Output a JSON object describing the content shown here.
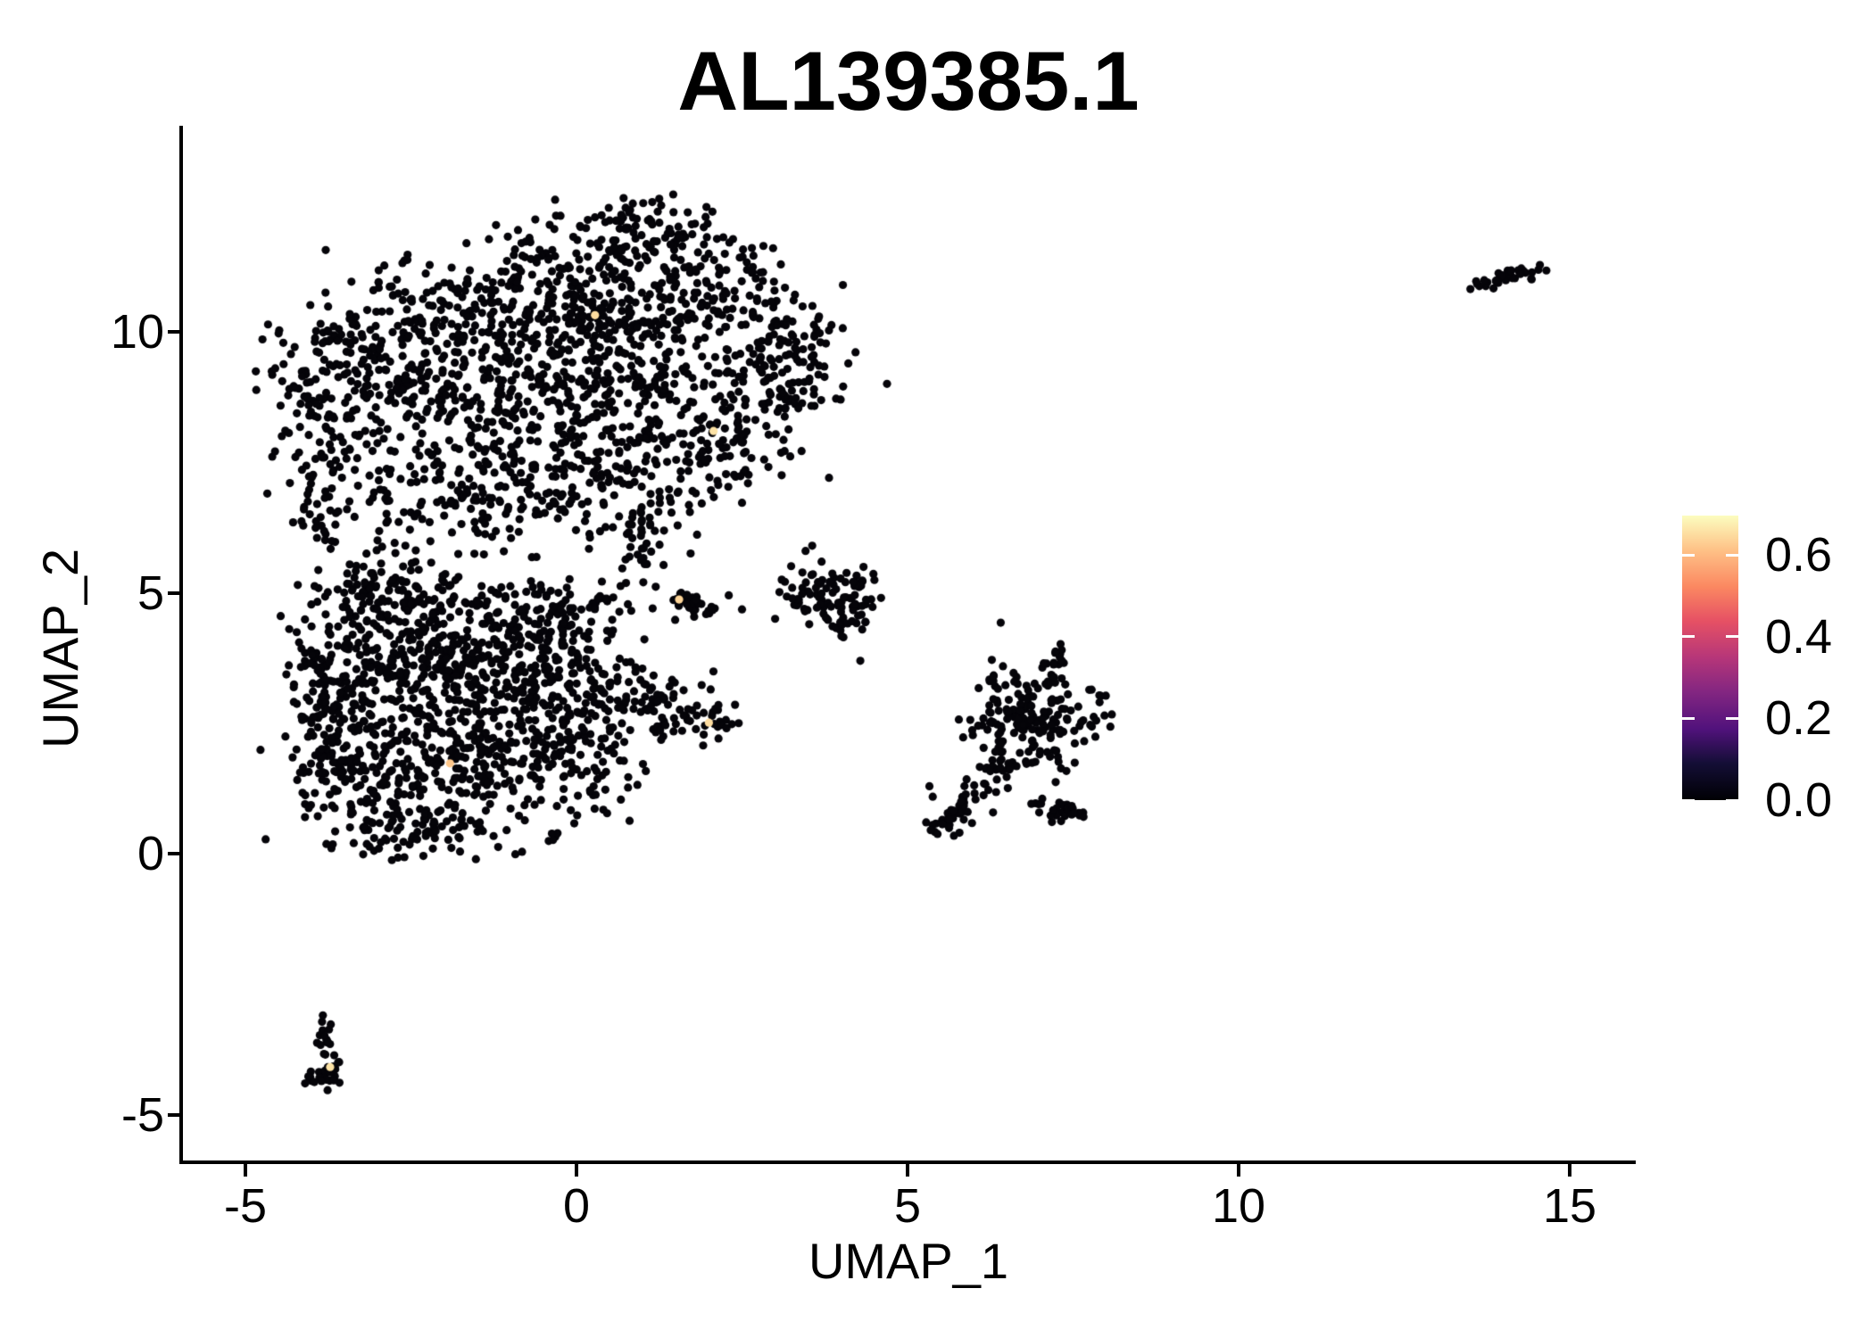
{
  "chart_data": {
    "type": "scatter",
    "title": "AL139385.1",
    "xlabel": "UMAP_1",
    "ylabel": "UMAP_2",
    "xlim": [
      -6,
      16
    ],
    "ylim": [
      -6,
      14
    ],
    "grid": false,
    "x_ticks": [
      -5,
      0,
      5,
      10,
      15
    ],
    "x_tick_labels": [
      "-5",
      "0",
      "5",
      "10",
      "15"
    ],
    "y_ticks": [
      -5,
      0,
      5,
      10
    ],
    "y_tick_labels": [
      "-5",
      "0",
      "5",
      "10"
    ],
    "legend": {
      "position": "right",
      "vmin": 0.0,
      "vmax": 0.697,
      "ticks": [
        0.6,
        0.4,
        0.2,
        0.0
      ],
      "tick_labels": [
        "0.6",
        "0.4",
        "0.2",
        "0.0"
      ],
      "palette": "magma",
      "gradient_stops": [
        [
          0.0,
          "#000004"
        ],
        [
          0.13,
          "#140e36"
        ],
        [
          0.25,
          "#51127c"
        ],
        [
          0.38,
          "#832681"
        ],
        [
          0.5,
          "#b63679"
        ],
        [
          0.63,
          "#e65164"
        ],
        [
          0.75,
          "#fb8861"
        ],
        [
          0.88,
          "#fec287"
        ],
        [
          1.0,
          "#fcfdbf"
        ]
      ]
    },
    "point_radius_px": 4.6,
    "zero_expression_color": "#050409",
    "seed": 1337,
    "clusters": [
      {
        "name": "upper-main-blob",
        "blobs": [
          [
            1.2,
            12.0,
            0.5,
            0.35,
            60
          ],
          [
            0.2,
            11.3,
            0.8,
            0.5,
            110
          ],
          [
            -1.5,
            10.5,
            0.8,
            0.55,
            110
          ],
          [
            -3.0,
            9.7,
            0.7,
            0.5,
            80
          ],
          [
            -4.0,
            9.0,
            0.45,
            0.5,
            55
          ],
          [
            2.2,
            10.9,
            0.6,
            0.5,
            80
          ],
          [
            3.1,
            9.9,
            0.5,
            0.55,
            70
          ],
          [
            -2.2,
            9.0,
            0.8,
            0.6,
            110
          ],
          [
            -0.6,
            9.9,
            0.9,
            0.7,
            150
          ],
          [
            1.0,
            10.0,
            0.8,
            0.6,
            120
          ],
          [
            -3.7,
            7.9,
            0.4,
            0.55,
            45
          ],
          [
            -1.5,
            7.9,
            0.9,
            0.65,
            120
          ],
          [
            0.3,
            8.6,
            0.9,
            0.7,
            130
          ],
          [
            2.0,
            8.8,
            0.7,
            0.6,
            90
          ],
          [
            3.2,
            8.7,
            0.45,
            0.5,
            50
          ],
          [
            -2.6,
            6.7,
            0.6,
            0.5,
            60
          ],
          [
            -0.9,
            6.8,
            0.7,
            0.5,
            70
          ],
          [
            0.8,
            7.3,
            0.7,
            0.55,
            80
          ],
          [
            2.2,
            7.5,
            0.5,
            0.45,
            50
          ],
          [
            -3.9,
            6.3,
            0.25,
            0.6,
            22
          ],
          [
            0.9,
            6.1,
            0.4,
            0.45,
            30
          ]
        ],
        "halos": [
          [
            -0.3,
            9.3,
            4.0,
            3.0,
            140
          ]
        ],
        "chains": [
          [
            -4.25,
            8.3,
            -3.9,
            5.6,
            16,
            0.12,
            0.12
          ],
          [
            0.85,
            6.4,
            1.05,
            5.15,
            12,
            0.1,
            0.1
          ]
        ],
        "singles": [
          [
            -4.55,
            9.3
          ],
          [
            1.25,
            12.55
          ],
          [
            -4.45,
            8.0
          ]
        ]
      },
      {
        "name": "lower-main-blob",
        "blobs": [
          [
            -3.1,
            4.6,
            0.55,
            0.5,
            90
          ],
          [
            -2.0,
            4.4,
            0.7,
            0.55,
            120
          ],
          [
            -0.9,
            4.3,
            0.6,
            0.5,
            90
          ],
          [
            0.0,
            4.6,
            0.45,
            0.4,
            50
          ],
          [
            -3.5,
            3.4,
            0.5,
            0.6,
            80
          ],
          [
            -2.4,
            3.2,
            0.7,
            0.6,
            130
          ],
          [
            -1.2,
            3.0,
            0.7,
            0.6,
            120
          ],
          [
            -0.1,
            3.2,
            0.55,
            0.5,
            80
          ],
          [
            0.9,
            2.9,
            0.5,
            0.45,
            60
          ],
          [
            1.7,
            2.6,
            0.4,
            0.3,
            35
          ],
          [
            -3.6,
            1.8,
            0.45,
            0.55,
            70
          ],
          [
            -2.5,
            1.5,
            0.6,
            0.55,
            100
          ],
          [
            -1.4,
            1.6,
            0.6,
            0.5,
            90
          ],
          [
            -0.4,
            2.0,
            0.5,
            0.45,
            60
          ],
          [
            -3.0,
            0.6,
            0.5,
            0.35,
            50
          ],
          [
            -1.9,
            0.5,
            0.5,
            0.35,
            45
          ],
          [
            -3.85,
            2.6,
            0.22,
            0.7,
            35
          ],
          [
            0.3,
            1.4,
            0.3,
            0.3,
            18
          ],
          [
            -3.0,
            5.2,
            0.4,
            0.3,
            30
          ]
        ],
        "halos": [
          [
            -1.6,
            2.7,
            3.0,
            2.7,
            130
          ]
        ],
        "chains": [
          [
            1.9,
            2.55,
            2.3,
            2.45,
            6,
            0.07,
            0.07
          ],
          [
            0.3,
            4.9,
            1.0,
            4.6,
            8,
            0.1,
            0.1
          ]
        ],
        "singles": [
          [
            2.45,
            2.5
          ],
          [
            -4.1,
            0.7
          ]
        ]
      },
      {
        "name": "mid-small-clump",
        "blobs": [
          [
            1.8,
            4.75,
            0.18,
            0.12,
            10
          ]
        ],
        "halos": [],
        "chains": [
          [
            1.45,
            4.95,
            2.05,
            4.62,
            22,
            0.09,
            0.09
          ]
        ],
        "singles": [
          [
            2.5,
            4.68
          ],
          [
            2.3,
            4.95
          ],
          [
            1.15,
            4.7
          ]
        ]
      },
      {
        "name": "right-cluster-A",
        "blobs": [
          [
            3.95,
            4.8,
            0.28,
            0.4,
            55
          ],
          [
            3.5,
            5.0,
            0.22,
            0.3,
            25
          ],
          [
            4.3,
            4.6,
            0.18,
            0.25,
            15
          ],
          [
            4.25,
            5.35,
            0.15,
            0.2,
            10
          ]
        ],
        "halos": [],
        "chains": [],
        "singles": [
          [
            3.0,
            4.5
          ],
          [
            3.1,
            5.25
          ],
          [
            3.46,
            5.8
          ],
          [
            3.56,
            5.9
          ],
          [
            4.6,
            4.9
          ]
        ]
      },
      {
        "name": "right-cluster-B",
        "blobs": [
          [
            7.05,
            2.6,
            0.42,
            0.5,
            110
          ],
          [
            6.6,
            2.9,
            0.3,
            0.35,
            35
          ],
          [
            6.25,
            2.35,
            0.22,
            0.2,
            22
          ],
          [
            5.65,
            0.65,
            0.18,
            0.14,
            18
          ],
          [
            7.45,
            0.78,
            0.2,
            0.08,
            12
          ],
          [
            6.2,
            1.5,
            0.3,
            0.3,
            12
          ],
          [
            7.0,
            1.9,
            0.25,
            0.2,
            10
          ]
        ],
        "halos": [],
        "chains": [
          [
            7.15,
            3.2,
            7.3,
            3.95,
            16,
            0.08,
            0.08
          ],
          [
            6.55,
            1.85,
            5.5,
            0.5,
            40,
            0.1,
            0.1
          ],
          [
            6.9,
            1.0,
            7.7,
            0.72,
            22,
            0.07,
            0.07
          ]
        ],
        "singles": [
          [
            7.9,
            2.9
          ],
          [
            7.85,
            2.55
          ],
          [
            6.3,
            3.4
          ],
          [
            5.35,
            0.45
          ]
        ]
      },
      {
        "name": "bottom-left-mini-cluster",
        "blobs": [
          [
            -3.78,
            -4.15,
            0.12,
            0.18,
            20
          ],
          [
            -3.95,
            -4.35,
            0.1,
            0.1,
            8
          ]
        ],
        "halos": [],
        "chains": [
          [
            -3.82,
            -3.25,
            -3.72,
            -3.9,
            14,
            0.06,
            0.06
          ]
        ],
        "singles": [
          [
            -3.83,
            -3.1
          ],
          [
            -3.6,
            -4.0
          ]
        ]
      },
      {
        "name": "top-right-mini-cluster",
        "blobs": [
          [
            14.35,
            11.15,
            0.18,
            0.09,
            12
          ]
        ],
        "halos": [],
        "chains": [
          [
            13.55,
            10.9,
            14.25,
            11.15,
            20,
            0.09,
            0.06
          ]
        ],
        "singles": [
          [
            14.55,
            11.28
          ],
          [
            13.5,
            10.82
          ]
        ]
      }
    ],
    "highlighted_cells": [
      {
        "x": 0.28,
        "y": 10.32,
        "value": 0.65
      },
      {
        "x": 2.07,
        "y": 8.1,
        "value": 0.66
      },
      {
        "x": 1.55,
        "y": 4.87,
        "value": 0.64
      },
      {
        "x": 2.0,
        "y": 2.51,
        "value": 0.65
      },
      {
        "x": -1.91,
        "y": 1.73,
        "value": 0.62
      },
      {
        "x": -3.72,
        "y": -4.09,
        "value": 0.66
      }
    ]
  }
}
